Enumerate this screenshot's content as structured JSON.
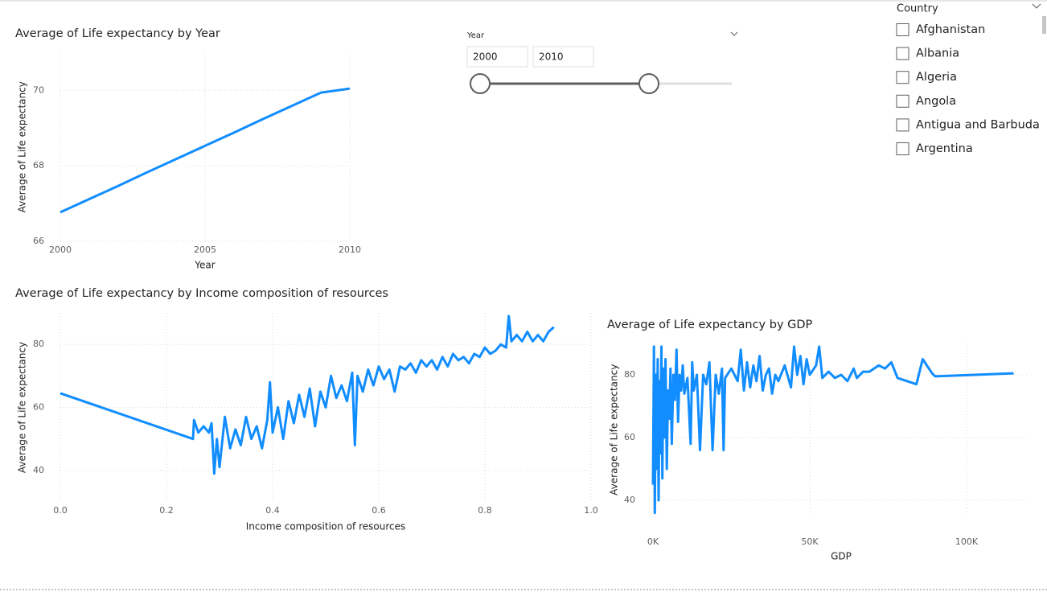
{
  "chart_data": [
    {
      "type": "line",
      "title": "Average of Life expectancy by Year",
      "x_label": "Year",
      "y_label": "Average of Life expectancy",
      "color": "#118DFF",
      "grid": true,
      "x": [
        2000,
        2001,
        2002,
        2003,
        2004,
        2005,
        2006,
        2007,
        2008,
        2009,
        2010
      ],
      "values": [
        66.77,
        67.12,
        67.47,
        67.83,
        68.18,
        68.53,
        68.88,
        69.24,
        69.59,
        69.94,
        70.05
      ],
      "xlim": [
        2000,
        2010
      ],
      "xticks": [
        2000,
        2005,
        2010
      ],
      "ylim": [
        66,
        71
      ],
      "yticks": [
        66,
        68,
        70
      ]
    },
    {
      "type": "line",
      "title": "Average of Life expectancy by Income composition of resources",
      "x_label": "Income composition of resources",
      "y_label": "Average of Life expectancy",
      "color": "#118DFF",
      "grid": true,
      "x": [
        0,
        0.25,
        0.252,
        0.26,
        0.27,
        0.28,
        0.285,
        0.29,
        0.295,
        0.3,
        0.31,
        0.32,
        0.33,
        0.34,
        0.35,
        0.36,
        0.37,
        0.38,
        0.39,
        0.395,
        0.4,
        0.41,
        0.42,
        0.43,
        0.44,
        0.45,
        0.46,
        0.47,
        0.48,
        0.49,
        0.5,
        0.51,
        0.52,
        0.53,
        0.54,
        0.55,
        0.555,
        0.56,
        0.57,
        0.58,
        0.59,
        0.6,
        0.61,
        0.62,
        0.63,
        0.64,
        0.65,
        0.66,
        0.67,
        0.68,
        0.69,
        0.7,
        0.71,
        0.72,
        0.73,
        0.74,
        0.75,
        0.76,
        0.77,
        0.78,
        0.79,
        0.8,
        0.81,
        0.82,
        0.83,
        0.84,
        0.845,
        0.85,
        0.86,
        0.87,
        0.88,
        0.89,
        0.9,
        0.91,
        0.92,
        0.93
      ],
      "values": [
        64.5,
        50,
        56,
        52,
        54,
        52,
        55,
        39,
        50,
        41,
        57,
        47,
        53,
        48,
        57,
        50,
        54,
        47,
        56,
        68,
        52,
        60,
        50,
        62,
        55,
        64,
        57,
        66,
        54,
        65,
        60,
        70,
        63,
        67,
        62,
        71,
        48,
        70,
        65,
        72,
        67,
        73,
        69,
        72,
        65,
        73,
        72,
        74,
        71,
        75,
        73,
        75,
        72,
        76,
        73,
        77,
        75,
        76,
        74,
        77,
        76,
        79,
        77,
        78,
        80,
        79,
        89,
        81,
        83,
        81,
        84,
        81,
        83,
        81,
        84,
        85.5
      ],
      "xlim": [
        0,
        1
      ],
      "xticks": [
        {
          "value": 0,
          "label": "0.0"
        },
        0.2,
        0.4,
        0.6,
        0.8,
        {
          "value": 1,
          "label": "1.0"
        }
      ],
      "ylim": [
        30,
        90
      ],
      "yticks": [
        40,
        60,
        80
      ]
    },
    {
      "type": "line",
      "title": "Average of Life expectancy by GDP",
      "x_label": "GDP",
      "y_label": "Average of Life expectancy",
      "color": "#118DFF",
      "grid": true,
      "x": [
        0,
        300,
        600,
        900,
        1200,
        1500,
        1800,
        2100,
        2400,
        2700,
        3000,
        3300,
        3600,
        4000,
        4400,
        4800,
        5200,
        5600,
        6000,
        6500,
        7000,
        7500,
        8000,
        8500,
        9000,
        9500,
        10000,
        11000,
        12000,
        12500,
        13000,
        14000,
        15000,
        16000,
        17000,
        18000,
        19000,
        20000,
        21000,
        22000,
        22500,
        23000,
        25000,
        27000,
        28000,
        29000,
        30000,
        31000,
        32000,
        33000,
        34000,
        35000,
        36000,
        37000,
        38000,
        39000,
        40000,
        42000,
        44000,
        45000,
        46000,
        47000,
        48000,
        49000,
        50000,
        52000,
        53000,
        54000,
        56000,
        58000,
        60000,
        62000,
        64000,
        65000,
        67000,
        69000,
        72000,
        74000,
        76000,
        78000,
        84000,
        86000,
        89000,
        90000,
        115000
      ],
      "values": [
        45,
        89,
        36,
        80,
        50,
        85,
        40,
        78,
        55,
        89,
        47,
        82,
        60,
        85,
        50,
        75,
        66,
        82,
        58,
        80,
        72,
        88,
        65,
        80,
        75,
        83,
        74,
        79,
        58,
        84,
        75,
        80,
        56,
        80,
        77,
        84,
        56,
        80,
        74,
        82,
        56,
        79,
        82,
        78,
        88,
        75,
        84,
        76,
        83,
        78,
        86,
        75,
        80,
        82,
        74,
        80,
        78,
        83,
        76,
        89,
        80,
        86,
        77,
        85,
        80,
        83,
        89,
        79,
        81,
        79,
        80,
        78,
        82,
        79,
        81,
        81,
        83,
        82,
        84,
        79,
        77,
        85,
        80.5,
        79.5,
        80.5
      ],
      "xlim": [
        0,
        120000
      ],
      "xticks": [
        {
          "value": 0,
          "label": "0K"
        },
        {
          "value": 50000,
          "label": "50K"
        },
        {
          "value": 100000,
          "label": "100K"
        }
      ],
      "ylim": [
        35,
        90
      ],
      "yticks": [
        40,
        60,
        80
      ]
    }
  ],
  "year_slicer": {
    "title": "Year",
    "start": "2000",
    "end": "2010"
  },
  "country_slicer": {
    "title": "Country",
    "items": [
      "Afghanistan",
      "Albania",
      "Algeria",
      "Angola",
      "Antigua and Barbuda",
      "Argentina"
    ]
  }
}
